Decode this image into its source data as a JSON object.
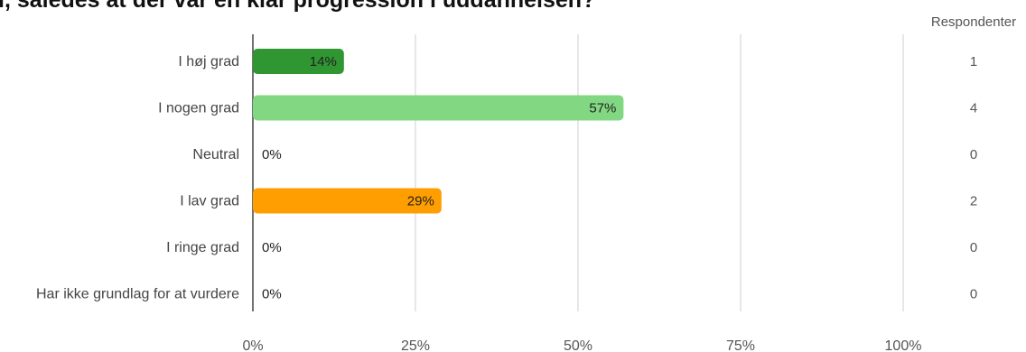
{
  "title": "i, således at der var en klar progression i uddannelsen?",
  "chart_data": {
    "type": "bar",
    "orientation": "horizontal",
    "categories": [
      "I høj grad",
      "I nogen grad",
      "Neutral",
      "I lav grad",
      "I ringe grad",
      "Har ikke grundlag for at vurdere"
    ],
    "values": [
      14,
      57,
      0,
      29,
      0,
      0
    ],
    "value_labels": [
      "14%",
      "57%",
      "0%",
      "29%",
      "0%",
      "0%"
    ],
    "colors": [
      "#2f9632",
      "#82d882",
      "#cccccc",
      "#ff9e00",
      "#cccccc",
      "#cccccc"
    ],
    "xlim": [
      0,
      100
    ],
    "x_ticks": [
      0,
      25,
      50,
      75,
      100
    ],
    "x_tick_labels": [
      "0%",
      "25%",
      "50%",
      "75%",
      "100%"
    ],
    "grid": true,
    "respondents_header": "Respondenter",
    "respondents": [
      "1",
      "4",
      "0",
      "2",
      "0",
      "0"
    ]
  }
}
